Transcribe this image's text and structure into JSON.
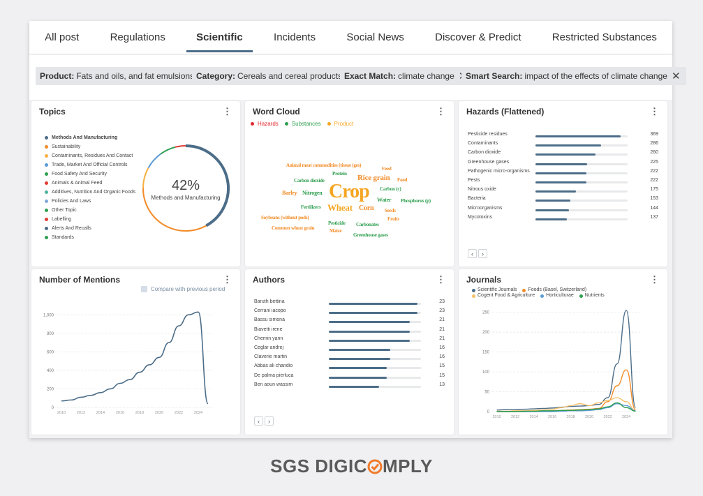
{
  "tabs": [
    {
      "label": "All post",
      "active": false
    },
    {
      "label": "Regulations",
      "active": false
    },
    {
      "label": "Scientific",
      "active": true
    },
    {
      "label": "Incidents",
      "active": false
    },
    {
      "label": "Social News",
      "active": false
    },
    {
      "label": "Discover & Predict",
      "active": false
    },
    {
      "label": "Restricted Substances",
      "active": false
    }
  ],
  "filters": [
    {
      "key": "Product:",
      "value": "Fats and oils, and fat emulsions"
    },
    {
      "key": "Category:",
      "value": "Cereals and cereal products"
    },
    {
      "key": "Exact Match:",
      "value": "climate change"
    },
    {
      "key": "Smart Search:",
      "value": "impact of the effects of climate change"
    }
  ],
  "topics": {
    "title": "Topics",
    "percent": "42%",
    "center_label": "Methods and Manufacturing",
    "items": [
      {
        "label": "Methods And Manufacturing",
        "color": "#4c6d88",
        "bold": true
      },
      {
        "label": "Sustainability",
        "color": "#f28c28"
      },
      {
        "label": "Contaminants, Residues And Contact",
        "color": "#f5b041"
      },
      {
        "label": "Trade, Market And Official Controls",
        "color": "#5b9bd5"
      },
      {
        "label": "Food Safety And Security",
        "color": "#2e9e4f"
      },
      {
        "label": "Animals & Animal Feed",
        "color": "#e03c31"
      },
      {
        "label": "Additives, Nutrition And Organic Foods",
        "color": "#4fb39b"
      },
      {
        "label": "Policies And Laws",
        "color": "#7fa7d8"
      },
      {
        "label": "Other Topic",
        "color": "#2e9e4f"
      },
      {
        "label": "Labelling",
        "color": "#e03c31"
      },
      {
        "label": "Alerts And Recalls",
        "color": "#4c6d88"
      },
      {
        "label": "Standards",
        "color": "#2e9e4f"
      }
    ],
    "segments": [
      {
        "name": "Methods And Manufacturing",
        "share": 0.42,
        "color": "#4c6d88"
      },
      {
        "name": "Sustainability",
        "share": 0.33,
        "color": "#f28c28"
      },
      {
        "name": "Contaminants, Residues And Contact",
        "share": 0.08,
        "color": "#f5b041"
      },
      {
        "name": "Trade, Market And Official Controls",
        "share": 0.07,
        "color": "#5b9bd5"
      },
      {
        "name": "Food Safety And Security",
        "share": 0.06,
        "color": "#2e9e4f"
      },
      {
        "name": "Other",
        "share": 0.04,
        "color": "#e03c31"
      }
    ]
  },
  "wordcloud": {
    "title": "Word Cloud",
    "legend": [
      {
        "label": "Hazards",
        "color": "#e3262b"
      },
      {
        "label": "Substances",
        "color": "#2e9e4f"
      },
      {
        "label": "Product",
        "color": "#f5a623"
      }
    ],
    "words": [
      {
        "text": "Animal meat commodities (tissue (ges)",
        "color": "#f28c28"
      },
      {
        "text": "Feed",
        "color": "#f28c28"
      },
      {
        "text": "Protein",
        "color": "#2e9e4f"
      },
      {
        "text": "Rice grain",
        "color": "#f28c28"
      },
      {
        "text": "Carbon dioxide",
        "color": "#2e9e4f"
      },
      {
        "text": "Food",
        "color": "#f28c28"
      },
      {
        "text": "Carbon (c)",
        "color": "#2e9e4f"
      },
      {
        "text": "Barley",
        "color": "#f28c28"
      },
      {
        "text": "Nitrogen",
        "color": "#2e9e4f"
      },
      {
        "text": "Crop",
        "color": "#f5a623"
      },
      {
        "text": "Water",
        "color": "#2e9e4f"
      },
      {
        "text": "Phosphorus (p)",
        "color": "#2e9e4f"
      },
      {
        "text": "Fertilizers",
        "color": "#2e9e4f"
      },
      {
        "text": "Wheat",
        "color": "#f5a623"
      },
      {
        "text": "Corn",
        "color": "#f28c28"
      },
      {
        "text": "Seeds",
        "color": "#f28c28"
      },
      {
        "text": "Soybeans (without pods)",
        "color": "#f28c28"
      },
      {
        "text": "Fruits",
        "color": "#f28c28"
      },
      {
        "text": "Pesticide",
        "color": "#2e9e4f"
      },
      {
        "text": "Carbonates",
        "color": "#2e9e4f"
      },
      {
        "text": "Common wheat grain",
        "color": "#f28c28"
      },
      {
        "text": "Maize",
        "color": "#f28c28"
      },
      {
        "text": "Greenhouse gases",
        "color": "#2e9e4f"
      }
    ]
  },
  "hazards": {
    "title": "Hazards (Flattened)",
    "max": 400,
    "rows": [
      {
        "label": "Pesticide residues",
        "value": 369
      },
      {
        "label": "Contaminants",
        "value": 286
      },
      {
        "label": "Carbon dioxide",
        "value": 260
      },
      {
        "label": "Greenhouse gases",
        "value": 225
      },
      {
        "label": "Pathogenic micro-organisms",
        "value": 222
      },
      {
        "label": "Pests",
        "value": 222
      },
      {
        "label": "Nitrous oxide",
        "value": 175
      },
      {
        "label": "Bacteria",
        "value": 153
      },
      {
        "label": "Microorganisms",
        "value": 144
      },
      {
        "label": "Mycotoxins",
        "value": 137
      }
    ]
  },
  "mentions": {
    "title": "Number of Mentions",
    "compare_label": "Compare with previous period"
  },
  "authors": {
    "title": "Authors",
    "max": 24,
    "rows": [
      {
        "label": "Baruth bettina",
        "value": 23
      },
      {
        "label": "Cerrani iacopo",
        "value": 23
      },
      {
        "label": "Bassu simona",
        "value": 21
      },
      {
        "label": "Biavetti irene",
        "value": 21
      },
      {
        "label": "Chemin yann",
        "value": 21
      },
      {
        "label": "Ceglar andrej",
        "value": 16
      },
      {
        "label": "Claverie martin",
        "value": 16
      },
      {
        "label": "Abbas ali chandio",
        "value": 15
      },
      {
        "label": "De palma pierluca",
        "value": 15
      },
      {
        "label": "Ben aoun wassim",
        "value": 13
      }
    ]
  },
  "journals": {
    "title": "Journals"
  },
  "pager": {
    "prev": "‹",
    "next": "›"
  },
  "logo": {
    "left": "SGS DIGIC",
    "right": "MPLY"
  },
  "chart_data": [
    {
      "type": "line",
      "title": "Number of Mentions",
      "x": [
        2010,
        2011,
        2012,
        2013,
        2014,
        2015,
        2016,
        2017,
        2018,
        2019,
        2020,
        2021,
        2022,
        2023,
        2024,
        2025
      ],
      "series": [
        {
          "values": [
            70,
            80,
            110,
            130,
            160,
            200,
            260,
            300,
            380,
            460,
            540,
            700,
            880,
            1000,
            1030,
            40
          ]
        }
      ],
      "xlim": [
        2009.5,
        2025.5
      ],
      "ylim": [
        0,
        1100
      ],
      "yticks": [
        0,
        200,
        400,
        600,
        800,
        1000
      ],
      "xticks": [
        2010,
        2012,
        2014,
        2016,
        2018,
        2020,
        2022,
        2024
      ],
      "ytick_labels": [
        "0",
        "200",
        "400",
        "600",
        "800",
        "1,000"
      ],
      "color": "#4c6d88",
      "grid": true
    },
    {
      "type": "line",
      "title": "Journals",
      "x": [
        2010,
        2011,
        2012,
        2013,
        2014,
        2015,
        2016,
        2017,
        2018,
        2019,
        2020,
        2021,
        2022,
        2023,
        2024,
        2025
      ],
      "xlim": [
        2009.5,
        2025.5
      ],
      "ylim": [
        0,
        260
      ],
      "yticks": [
        0,
        50,
        100,
        150,
        200,
        250
      ],
      "xticks": [
        2010,
        2012,
        2014,
        2016,
        2018,
        2020,
        2022,
        2024
      ],
      "grid": true,
      "series": [
        {
          "name": "Scientific Journals",
          "color": "#4c6d88",
          "values": [
            4,
            5,
            5,
            6,
            7,
            8,
            9,
            11,
            13,
            14,
            15,
            18,
            35,
            120,
            255,
            10
          ]
        },
        {
          "name": "Foods (Basel, Switzerland)",
          "color": "#f28c28",
          "values": [
            0,
            0,
            0,
            0,
            1,
            1,
            2,
            3,
            4,
            5,
            6,
            8,
            25,
            65,
            105,
            5
          ]
        },
        {
          "name": "Cogent Food & Agriculture",
          "color": "#f5c06a",
          "values": [
            1,
            1,
            2,
            2,
            3,
            4,
            6,
            10,
            15,
            20,
            15,
            22,
            28,
            35,
            25,
            3
          ]
        },
        {
          "name": "Horticulturae",
          "color": "#5b9bd5",
          "values": [
            0,
            0,
            0,
            0,
            0,
            0,
            0,
            1,
            2,
            2,
            3,
            5,
            10,
            20,
            15,
            2
          ]
        },
        {
          "name": "Nutrients",
          "color": "#2e9e4f",
          "values": [
            0,
            0,
            0,
            1,
            1,
            2,
            2,
            3,
            3,
            4,
            5,
            7,
            12,
            22,
            10,
            1
          ]
        }
      ]
    }
  ]
}
